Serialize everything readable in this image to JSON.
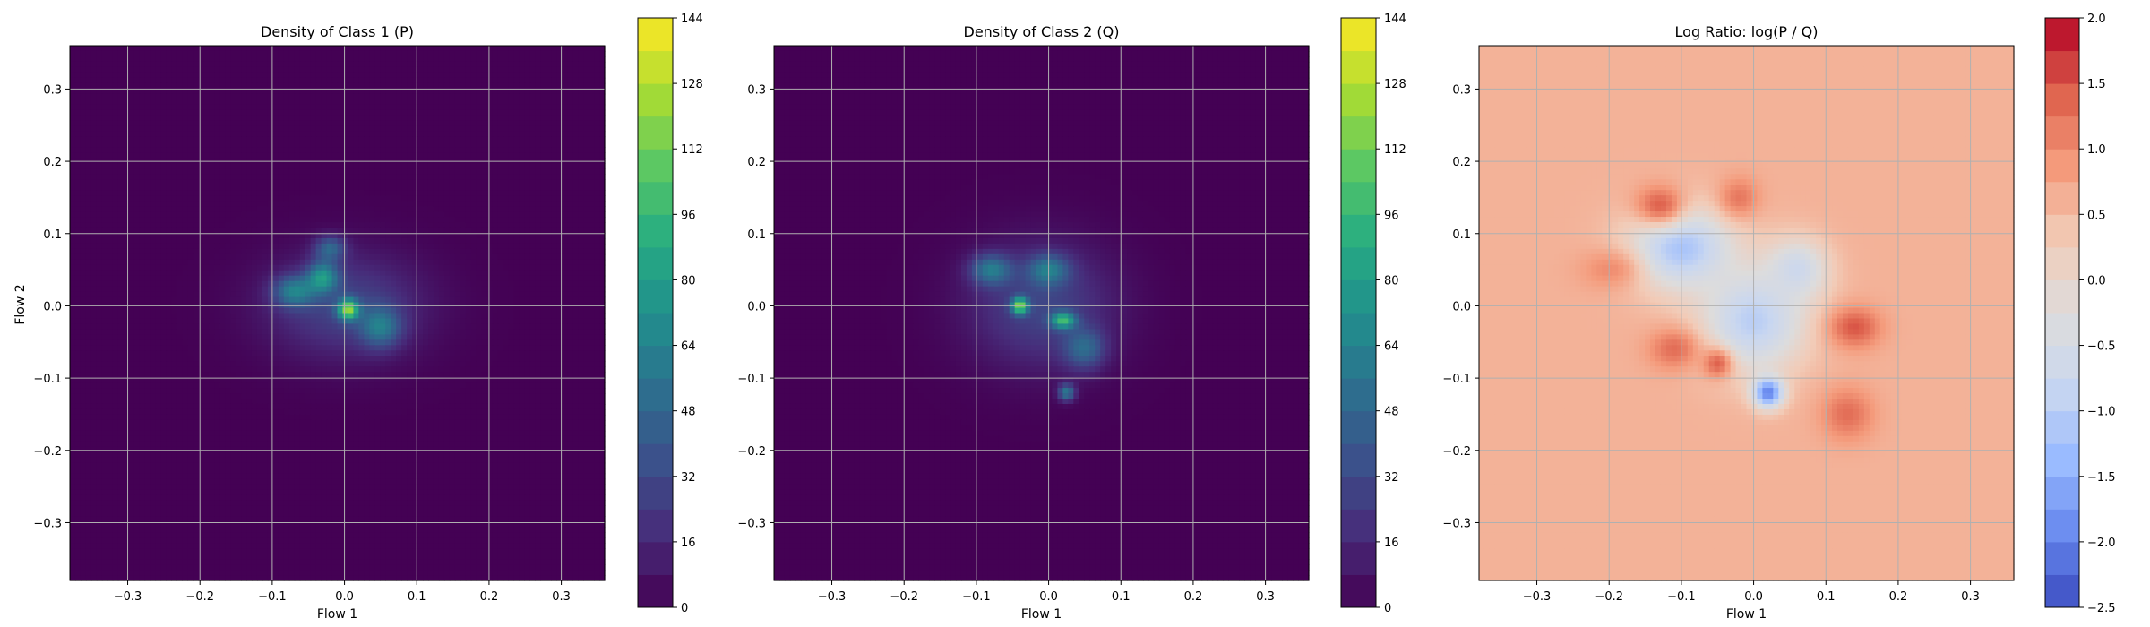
{
  "chart_data": [
    {
      "type": "heatmap",
      "title": "Density of Class 1 (P)",
      "xlabel": "Flow 1",
      "ylabel": "Flow 2",
      "xlim": [
        -0.38,
        0.36
      ],
      "ylim": [
        -0.38,
        0.36
      ],
      "xticks": [
        "−0.3",
        "−0.2",
        "−0.1",
        "0.0",
        "0.1",
        "0.2",
        "0.3"
      ],
      "yticks": [
        "−0.3",
        "−0.2",
        "−0.1",
        "0.0",
        "0.1",
        "0.2",
        "0.3"
      ],
      "grid": true,
      "colorbar": {
        "colormap": "viridis",
        "range": [
          0,
          144
        ],
        "ticks": [
          "0",
          "16",
          "32",
          "48",
          "64",
          "80",
          "96",
          "112",
          "128",
          "144"
        ]
      },
      "density_blobs": [
        {
          "x": 0.0,
          "y": 0.0,
          "sx": 0.075,
          "sy": 0.05,
          "peak": 30
        },
        {
          "x": 0.005,
          "y": -0.005,
          "sx": 0.01,
          "sy": 0.01,
          "peak": 95
        },
        {
          "x": -0.03,
          "y": 0.04,
          "sx": 0.015,
          "sy": 0.015,
          "peak": 60
        },
        {
          "x": -0.07,
          "y": 0.02,
          "sx": 0.02,
          "sy": 0.015,
          "peak": 50
        },
        {
          "x": 0.05,
          "y": -0.03,
          "sx": 0.02,
          "sy": 0.02,
          "peak": 45
        },
        {
          "x": -0.02,
          "y": 0.08,
          "sx": 0.015,
          "sy": 0.012,
          "peak": 42
        }
      ]
    },
    {
      "type": "heatmap",
      "title": "Density of Class 2 (Q)",
      "xlabel": "Flow 1",
      "ylabel": "",
      "xlim": [
        -0.38,
        0.36
      ],
      "ylim": [
        -0.38,
        0.36
      ],
      "xticks": [
        "−0.3",
        "−0.2",
        "−0.1",
        "0.0",
        "0.1",
        "0.2",
        "0.3"
      ],
      "yticks": [
        "−0.3",
        "−0.2",
        "−0.1",
        "0.0",
        "0.1",
        "0.2",
        "0.3"
      ],
      "grid": true,
      "colorbar": {
        "colormap": "viridis",
        "range": [
          0,
          144
        ],
        "ticks": [
          "0",
          "16",
          "32",
          "48",
          "64",
          "80",
          "96",
          "112",
          "128",
          "144"
        ]
      },
      "density_blobs": [
        {
          "x": -0.01,
          "y": 0.0,
          "sx": 0.07,
          "sy": 0.06,
          "peak": 30
        },
        {
          "x": -0.04,
          "y": 0.0,
          "sx": 0.008,
          "sy": 0.008,
          "peak": 95
        },
        {
          "x": 0.02,
          "y": -0.02,
          "sx": 0.012,
          "sy": 0.008,
          "peak": 75
        },
        {
          "x": -0.08,
          "y": 0.05,
          "sx": 0.02,
          "sy": 0.015,
          "peak": 50
        },
        {
          "x": 0.0,
          "y": 0.05,
          "sx": 0.02,
          "sy": 0.015,
          "peak": 45
        },
        {
          "x": 0.025,
          "y": -0.12,
          "sx": 0.008,
          "sy": 0.008,
          "peak": 55
        },
        {
          "x": 0.05,
          "y": -0.06,
          "sx": 0.02,
          "sy": 0.02,
          "peak": 40
        }
      ]
    },
    {
      "type": "heatmap",
      "title": "Log Ratio: log(P / Q)",
      "xlabel": "Flow 1",
      "ylabel": "",
      "xlim": [
        -0.38,
        0.36
      ],
      "ylim": [
        -0.38,
        0.36
      ],
      "xticks": [
        "−0.3",
        "−0.2",
        "−0.1",
        "0.0",
        "0.1",
        "0.2",
        "0.3"
      ],
      "yticks": [
        "−0.3",
        "−0.2",
        "−0.1",
        "0.0",
        "0.1",
        "0.2",
        "0.3"
      ],
      "grid": true,
      "colorbar": {
        "colormap": "coolwarm",
        "range": [
          -2.5,
          2.0
        ],
        "ticks": [
          "−2.5",
          "−2.0",
          "−1.5",
          "−1.0",
          "−0.5",
          "0.0",
          "0.5",
          "1.0",
          "1.5",
          "2.0"
        ]
      },
      "background_value": 0.6,
      "ratio_blobs": [
        {
          "x": -0.1,
          "y": 0.08,
          "sx": 0.05,
          "sy": 0.04,
          "v": -1.2
        },
        {
          "x": 0.0,
          "y": -0.02,
          "sx": 0.05,
          "sy": 0.05,
          "v": -1.0
        },
        {
          "x": 0.02,
          "y": -0.12,
          "sx": 0.015,
          "sy": 0.015,
          "v": -2.0
        },
        {
          "x": 0.06,
          "y": 0.05,
          "sx": 0.03,
          "sy": 0.03,
          "v": -0.7
        },
        {
          "x": -0.13,
          "y": 0.14,
          "sx": 0.025,
          "sy": 0.02,
          "v": 1.4
        },
        {
          "x": -0.02,
          "y": 0.15,
          "sx": 0.02,
          "sy": 0.02,
          "v": 1.2
        },
        {
          "x": -0.11,
          "y": -0.06,
          "sx": 0.025,
          "sy": 0.02,
          "v": 1.3
        },
        {
          "x": 0.14,
          "y": -0.03,
          "sx": 0.025,
          "sy": 0.02,
          "v": 1.5
        },
        {
          "x": 0.13,
          "y": -0.15,
          "sx": 0.025,
          "sy": 0.025,
          "v": 1.3
        },
        {
          "x": -0.05,
          "y": -0.08,
          "sx": 0.015,
          "sy": 0.015,
          "v": 1.4
        },
        {
          "x": -0.2,
          "y": 0.05,
          "sx": 0.03,
          "sy": 0.02,
          "v": 1.0
        }
      ]
    }
  ],
  "colors": {
    "background": "#ffffff",
    "grid": "#b0b0b0",
    "text": "#000000"
  }
}
